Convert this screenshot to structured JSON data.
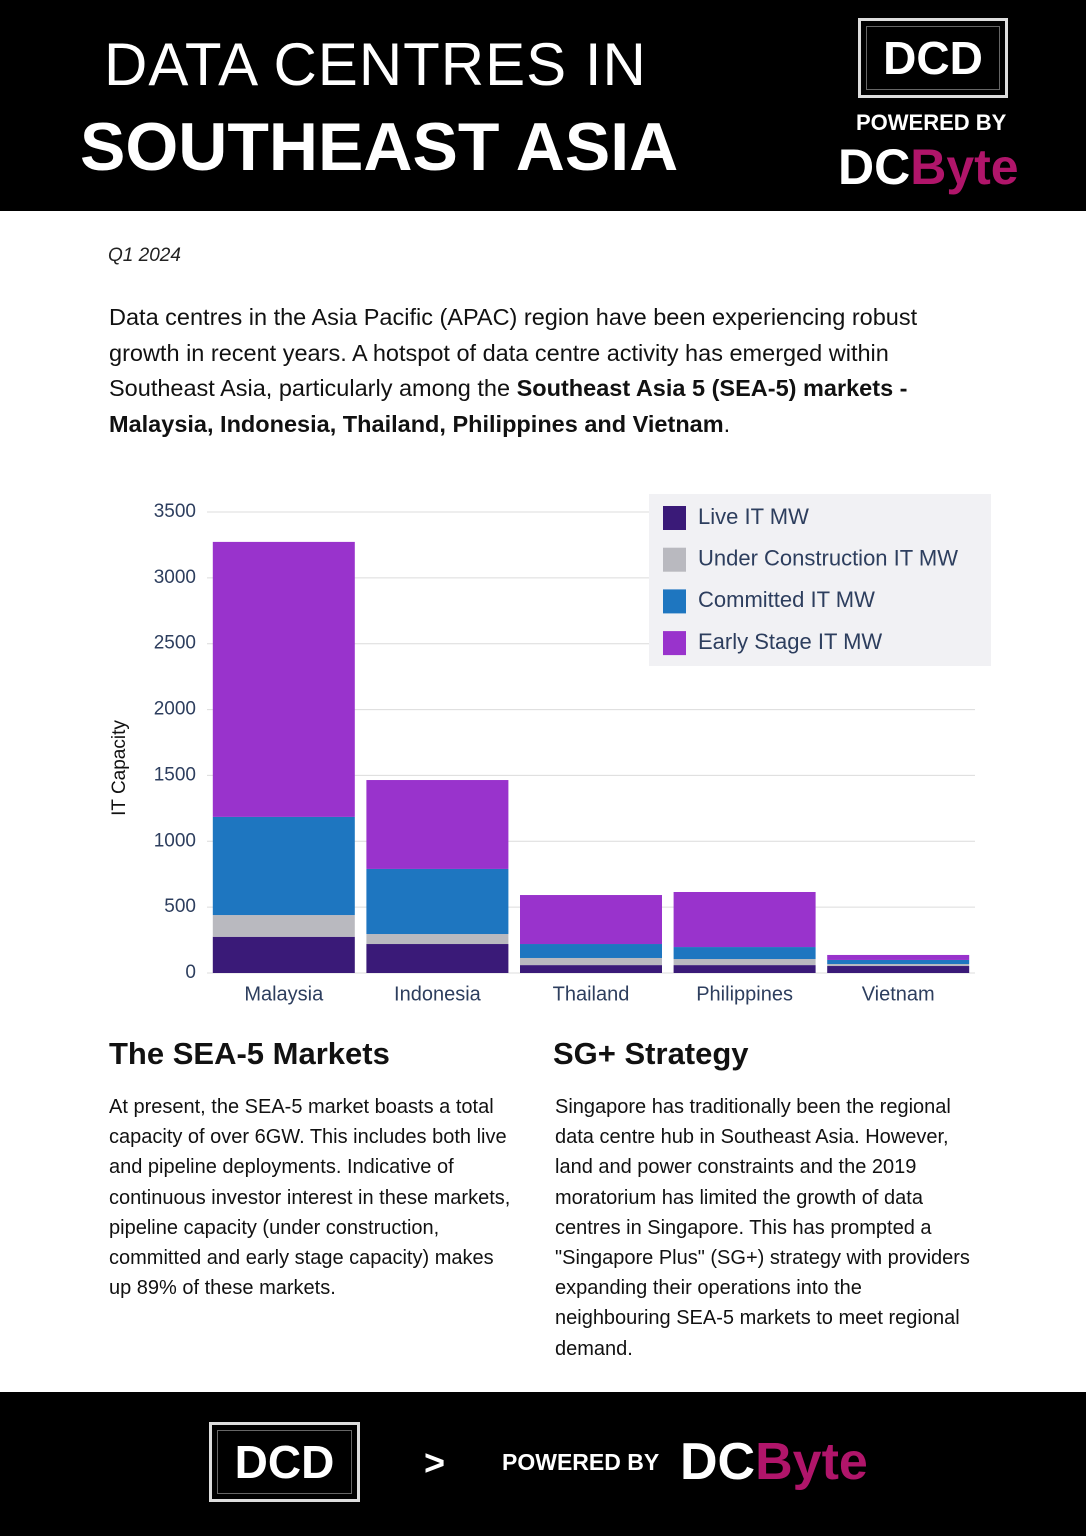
{
  "header": {
    "title_line1": "DATA CENTRES IN",
    "title_line2": "SOUTHEAST ASIA",
    "logo": "DCD",
    "powered_by": "POWERED BY",
    "brand_dc": "DC",
    "brand_byte": "Byte"
  },
  "date": "Q1 2024",
  "intro": [
    "Data centres in the Asia Pacific (APAC) region have been experiencing robust growth in recent years. A hotspot of data centre activity has emerged within Southeast Asia, particularly among the ",
    "Southeast Asia 5 (SEA-5) markets - Malaysia, Indonesia, Thailand, Philippines and Vietnam",
    "."
  ],
  "chart_data": {
    "type": "stacked-bar",
    "y_label": "IT Capacity",
    "categories": [
      "Malaysia",
      "Indonesia",
      "Thailand",
      "Philippines",
      "Vietnam"
    ],
    "series": [
      {
        "name": "Live IT MW",
        "color": "#3a1a78",
        "values": [
          275,
          220,
          60,
          60,
          53
        ]
      },
      {
        "name": "Under Construction IT MW",
        "color": "#b9b9bf",
        "values": [
          165,
          76,
          54,
          46,
          15
        ]
      },
      {
        "name": "Committed IT MW",
        "color": "#1e76c0",
        "values": [
          745,
          494,
          106,
          91,
          31
        ]
      },
      {
        "name": "Early Stage IT MW",
        "color": "#9933cc",
        "values": [
          2088,
          675,
          372,
          418,
          38
        ]
      }
    ],
    "ylim": [
      0,
      3500
    ],
    "yticks": [
      0,
      500,
      1000,
      1500,
      2000,
      2500,
      3000,
      3500
    ],
    "grid": true,
    "legend": "top-right"
  },
  "sections": [
    {
      "title": "The SEA-5 Markets",
      "text": "At present, the SEA-5 market boasts a total capacity of over 6GW. This includes both live and pipeline deployments. Indicative of continuous investor interest in these markets, pipeline capacity (under construction, committed and early stage capacity) makes up 89% of these markets."
    },
    {
      "title": "SG+ Strategy",
      "text": "Singapore has traditionally been the regional data centre hub in Southeast Asia. However, land and power constraints and the 2019 moratorium has limited the growth of data centres in Singapore. This has prompted a \"Singapore Plus\" (SG+) strategy with providers expanding their operations into the neighbouring SEA-5 markets to meet regional demand."
    }
  ],
  "footer": {
    "logo": "DCD",
    "separator": ">",
    "powered_by": "POWERED BY",
    "brand_dc": "DC",
    "brand_byte": "Byte"
  }
}
